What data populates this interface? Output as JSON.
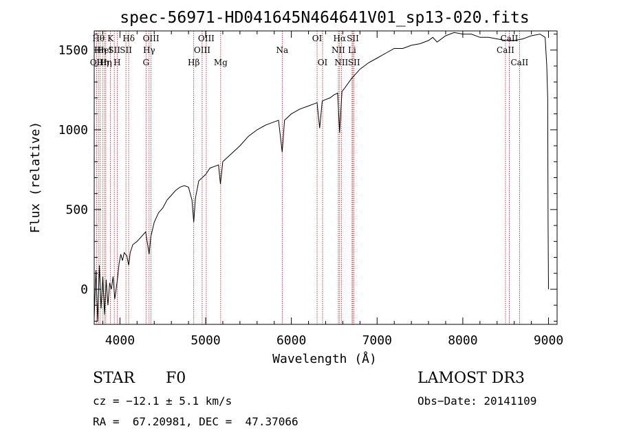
{
  "chart_data": {
    "type": "line",
    "title": "spec-56971-HD041645N464641V01_sp13-020.fits",
    "xlabel": "Wavelength (Å)",
    "ylabel": "Flux (relative)",
    "xlim": [
      3700,
      9100
    ],
    "ylim": [
      -220,
      1620
    ],
    "xticks": [
      4000,
      5000,
      6000,
      7000,
      8000,
      9000
    ],
    "yticks": [
      0,
      500,
      1000,
      1500
    ],
    "xtick_labels": [
      "4000",
      "5000",
      "6000",
      "7000",
      "8000",
      "9000"
    ],
    "ytick_labels": [
      "0",
      "500",
      "1000",
      "1500"
    ],
    "series": [
      {
        "name": "spectrum",
        "x": [
          3700,
          3720,
          3740,
          3760,
          3780,
          3800,
          3820,
          3840,
          3860,
          3880,
          3900,
          3920,
          3940,
          3960,
          3970,
          3990,
          4010,
          4030,
          4050,
          4080,
          4102,
          4120,
          4150,
          4200,
          4250,
          4300,
          4340,
          4360,
          4400,
          4450,
          4500,
          4550,
          4600,
          4650,
          4700,
          4750,
          4800,
          4840,
          4861,
          4880,
          4920,
          4960,
          5000,
          5050,
          5100,
          5150,
          5172,
          5200,
          5300,
          5400,
          5500,
          5600,
          5700,
          5800,
          5850,
          5893,
          5920,
          6000,
          6100,
          6200,
          6250,
          6300,
          6330,
          6360,
          6400,
          6450,
          6500,
          6540,
          6563,
          6590,
          6620,
          6700,
          6800,
          6900,
          7000,
          7100,
          7200,
          7300,
          7400,
          7500,
          7600,
          7650,
          7700,
          7800,
          7900,
          8000,
          8100,
          8200,
          8300,
          8400,
          8500,
          8600,
          8700,
          8800,
          8900,
          8960,
          8980,
          8990,
          8995,
          9000
        ],
        "y": [
          -180,
          120,
          -200,
          150,
          -120,
          80,
          -160,
          60,
          -100,
          40,
          0,
          80,
          -60,
          20,
          60,
          160,
          220,
          180,
          230,
          210,
          150,
          230,
          280,
          300,
          330,
          360,
          220,
          330,
          420,
          480,
          510,
          560,
          590,
          620,
          640,
          650,
          640,
          560,
          420,
          570,
          680,
          700,
          720,
          760,
          770,
          780,
          660,
          800,
          850,
          900,
          960,
          1000,
          1030,
          1050,
          1060,
          860,
          1060,
          1100,
          1130,
          1150,
          1160,
          1170,
          1010,
          1180,
          1190,
          1200,
          1220,
          1230,
          980,
          1240,
          1260,
          1320,
          1380,
          1420,
          1450,
          1480,
          1510,
          1510,
          1530,
          1540,
          1560,
          1580,
          1550,
          1590,
          1610,
          1600,
          1600,
          1580,
          1580,
          1570,
          1560,
          1560,
          1570,
          1590,
          1600,
          1580,
          1400,
          1200,
          400,
          0
        ]
      }
    ],
    "lines": [
      {
        "x": 3727,
        "label": "OII",
        "row": 2
      },
      {
        "x": 3750,
        "label": "Hθ",
        "row": 0
      },
      {
        "x": 3770,
        "label": "Hη",
        "row": 1
      },
      {
        "x": 3798,
        "label": "Hη",
        "row": 2
      },
      {
        "x": 3820,
        "label": "HeI",
        "row": 1
      },
      {
        "x": 3835,
        "label": "Hη",
        "row": 2
      },
      {
        "x": 3889,
        "label": "K",
        "row": 0
      },
      {
        "x": 3934,
        "label": "SII",
        "row": 1
      },
      {
        "x": 3968,
        "label": "H",
        "row": 2
      },
      {
        "x": 4102,
        "label": "Hδ",
        "row": 0
      },
      {
        "x": 4070,
        "label": "SII",
        "row": 1
      },
      {
        "x": 4304,
        "label": "G",
        "row": 2
      },
      {
        "x": 4340,
        "label": "Hγ",
        "row": 1
      },
      {
        "x": 4363,
        "label": "OIII",
        "row": 0
      },
      {
        "x": 4861,
        "label": "Hβ",
        "row": 2
      },
      {
        "x": 4959,
        "label": "OIII",
        "row": 1
      },
      {
        "x": 5007,
        "label": "OIII",
        "row": 0
      },
      {
        "x": 5175,
        "label": "Mg",
        "row": 2
      },
      {
        "x": 5893,
        "label": "Na",
        "row": 1
      },
      {
        "x": 6300,
        "label": "OI",
        "row": 0
      },
      {
        "x": 6364,
        "label": "OI",
        "row": 2
      },
      {
        "x": 6548,
        "label": "NII",
        "row": 1
      },
      {
        "x": 6563,
        "label": "Hα",
        "row": 0
      },
      {
        "x": 6583,
        "label": "NII",
        "row": 2
      },
      {
        "x": 6708,
        "label": "Li",
        "row": 1
      },
      {
        "x": 6717,
        "label": "SII",
        "row": 0
      },
      {
        "x": 6731,
        "label": "SII",
        "row": 2
      },
      {
        "x": 8498,
        "label": "CaII",
        "row": 1
      },
      {
        "x": 8542,
        "label": "CaII",
        "row": 0
      },
      {
        "x": 8662,
        "label": "CaII",
        "row": 2
      }
    ]
  },
  "info": {
    "object_class": "STAR",
    "subclass": "F0",
    "survey": "LAMOST DR3",
    "cz": "cz = −12.1 ± 5.1 km/s",
    "obs_date": "Obs−Date: 20141109",
    "coords": "RA =  67.20981, DEC =  47.37066"
  },
  "colors": {
    "spectrum": "#000000",
    "line_marker": "#a01818",
    "axis": "#000000"
  }
}
